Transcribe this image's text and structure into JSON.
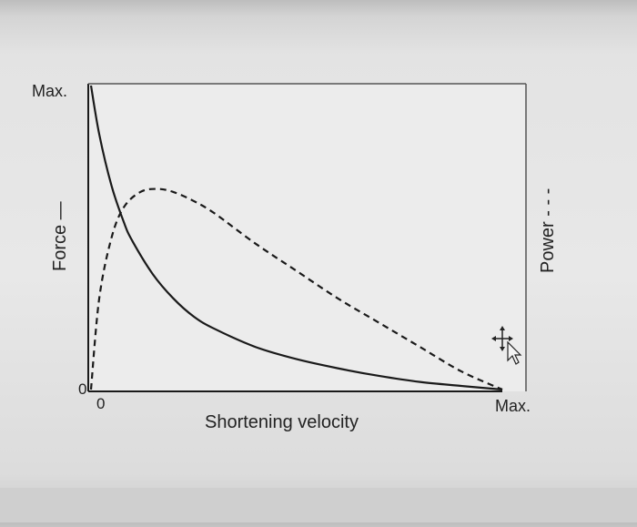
{
  "chart_data": {
    "type": "line",
    "xlabel": "Shortening velocity",
    "ylabel_left": "Force —",
    "ylabel_right": "Power - - -",
    "x_tick_labels": {
      "min": "0",
      "max": "Max."
    },
    "y_tick_labels": {
      "min": "0",
      "max": "Max."
    },
    "xlim": [
      0,
      1
    ],
    "ylim": [
      0,
      1
    ],
    "grid": false,
    "series": [
      {
        "name": "Force",
        "style": "solid",
        "x": [
          0,
          0.02,
          0.05,
          0.08,
          0.1,
          0.15,
          0.2,
          0.25,
          0.3,
          0.4,
          0.5,
          0.6,
          0.7,
          0.8,
          0.9,
          1.0
        ],
        "y": [
          1.0,
          0.84,
          0.67,
          0.55,
          0.49,
          0.38,
          0.3,
          0.24,
          0.2,
          0.14,
          0.1,
          0.07,
          0.045,
          0.025,
          0.012,
          0.0
        ]
      },
      {
        "name": "Power",
        "style": "dashed",
        "x": [
          0,
          0.02,
          0.05,
          0.08,
          0.12,
          0.16,
          0.2,
          0.25,
          0.3,
          0.4,
          0.5,
          0.6,
          0.7,
          0.8,
          0.9,
          1.0
        ],
        "y": [
          0.0,
          0.3,
          0.5,
          0.6,
          0.65,
          0.66,
          0.65,
          0.62,
          0.58,
          0.48,
          0.39,
          0.3,
          0.22,
          0.14,
          0.06,
          0.0
        ]
      }
    ]
  },
  "colors": {
    "line": "#1a1a1a",
    "frame": "#555555",
    "plot_bg": "#ebebeb"
  },
  "icons": [
    "move-cursor-icon",
    "pointer-cursor-icon"
  ]
}
